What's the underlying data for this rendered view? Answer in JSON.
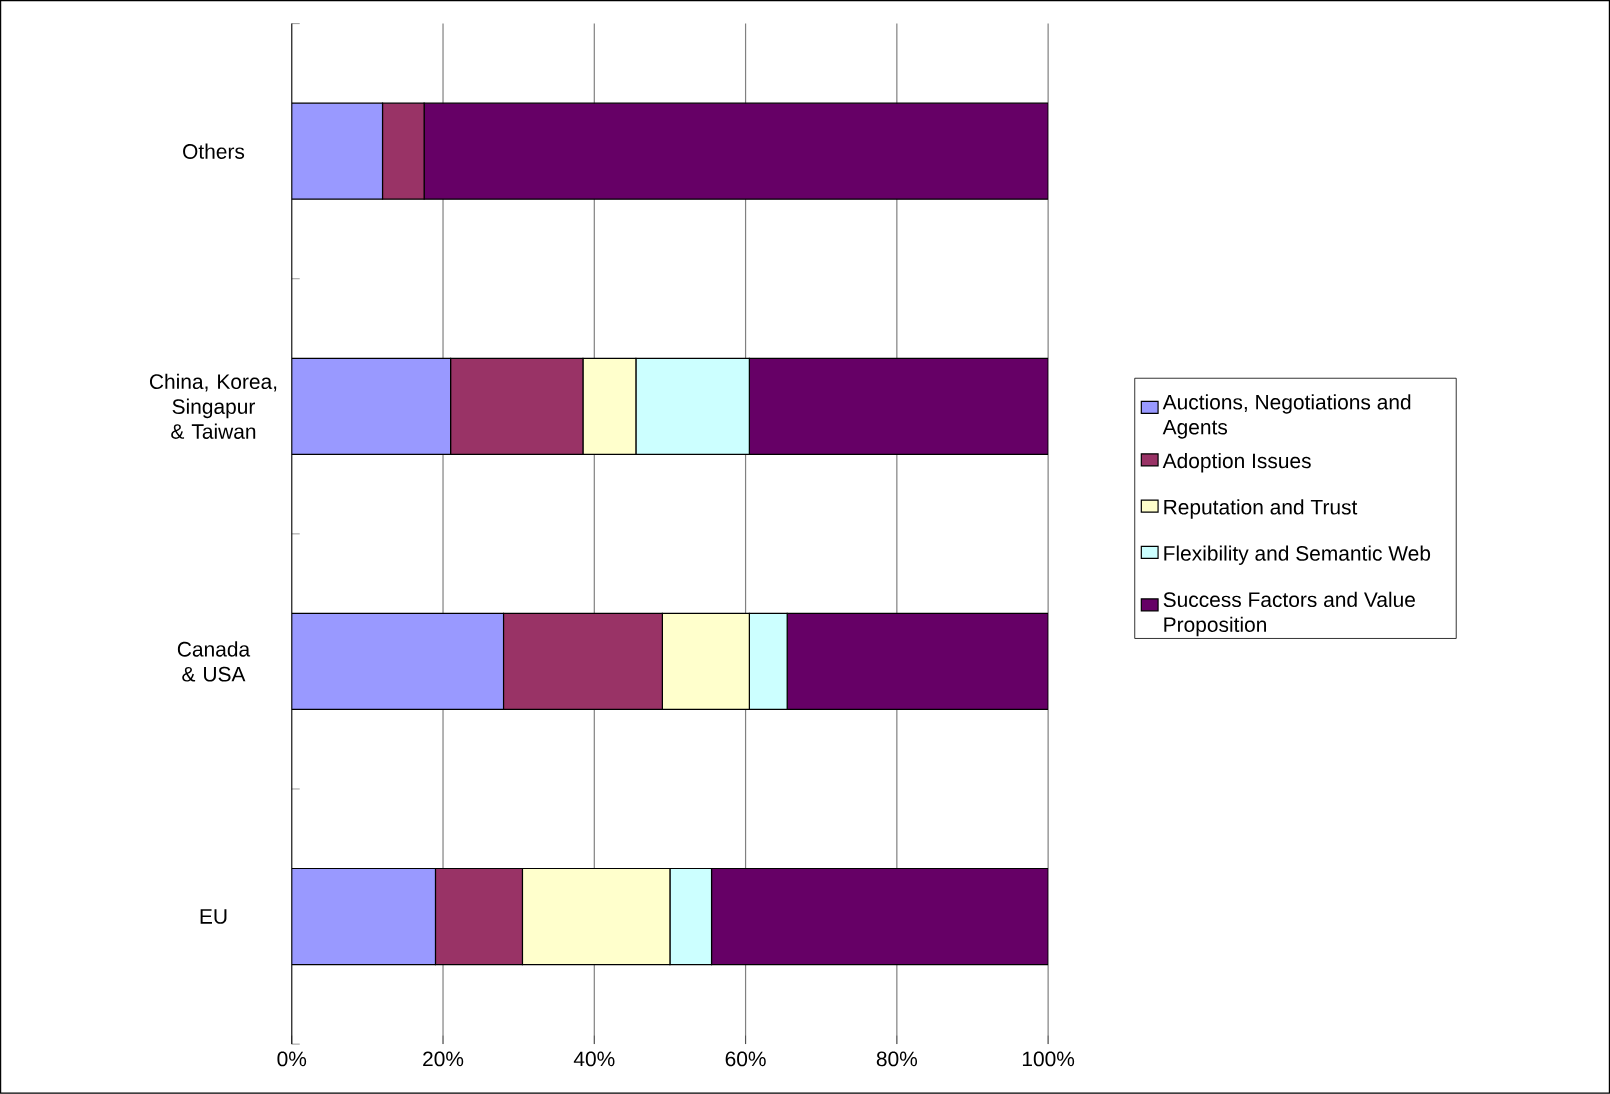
{
  "chart_data": {
    "type": "bar",
    "orientation": "horizontal",
    "stacked": true,
    "categories": [
      "Others",
      "China, Korea, Singapur & Taiwan",
      "Canada & USA",
      "EU"
    ],
    "series": [
      {
        "name": "Auctions, Negotiations and Agents",
        "color": "#9999ff",
        "values": [
          12,
          21,
          28,
          19
        ]
      },
      {
        "name": "Adoption Issues",
        "color": "#993366",
        "values": [
          5.5,
          17.5,
          21,
          11.5
        ]
      },
      {
        "name": "Reputation and Trust",
        "color": "#ffffcc",
        "values": [
          0,
          7,
          11.5,
          19.5
        ]
      },
      {
        "name": "Flexibility and Semantic Web",
        "color": "#ccffff",
        "values": [
          0,
          15,
          5,
          5.5
        ]
      },
      {
        "name": "Success Factors and Value Proposition",
        "color": "#660066",
        "values": [
          82.5,
          39.5,
          34.5,
          44.5
        ]
      }
    ],
    "xlim": [
      0,
      100
    ],
    "xticks": [
      {
        "value": 0,
        "label": "0%"
      },
      {
        "value": 20,
        "label": "20%"
      },
      {
        "value": 40,
        "label": "40%"
      },
      {
        "value": 60,
        "label": "60%"
      },
      {
        "value": 80,
        "label": "80%"
      },
      {
        "value": 100,
        "label": "100%"
      }
    ],
    "grid": "x",
    "legend": "right"
  }
}
